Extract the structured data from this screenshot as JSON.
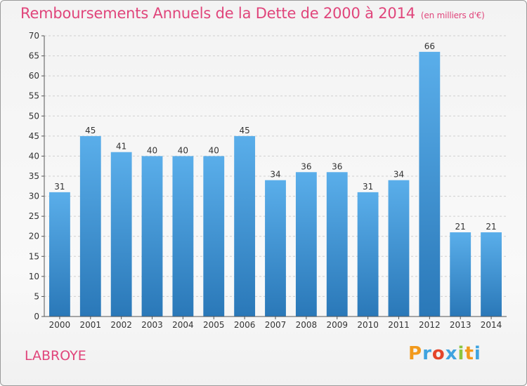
{
  "title": "Remboursements Annuels de la Dette de 2000 à 2014",
  "subtitle": "(en milliers d'€)",
  "place": "LABROYE",
  "logo": {
    "letters": [
      "P",
      "r",
      "o",
      "x",
      "i",
      "t",
      "i"
    ],
    "colors": [
      "#f29a1c",
      "#3fa3df",
      "#e4452a",
      "#3fa3df",
      "#8cc63e",
      "#f29a1c",
      "#3fa3df"
    ]
  },
  "chart_data": {
    "type": "bar",
    "categories": [
      "2000",
      "2001",
      "2002",
      "2003",
      "2004",
      "2005",
      "2006",
      "2007",
      "2008",
      "2009",
      "2010",
      "2011",
      "2012",
      "2013",
      "2014"
    ],
    "values": [
      31,
      45,
      41,
      40,
      40,
      40,
      45,
      34,
      36,
      36,
      31,
      34,
      66,
      21,
      21
    ],
    "ylim": [
      0,
      70
    ],
    "yticks": [
      0,
      5,
      10,
      15,
      20,
      25,
      30,
      35,
      40,
      45,
      50,
      55,
      60,
      65,
      70
    ],
    "grid": true,
    "bar_color_top": "#5aaeea",
    "bar_color_bottom": "#2a78b8"
  }
}
